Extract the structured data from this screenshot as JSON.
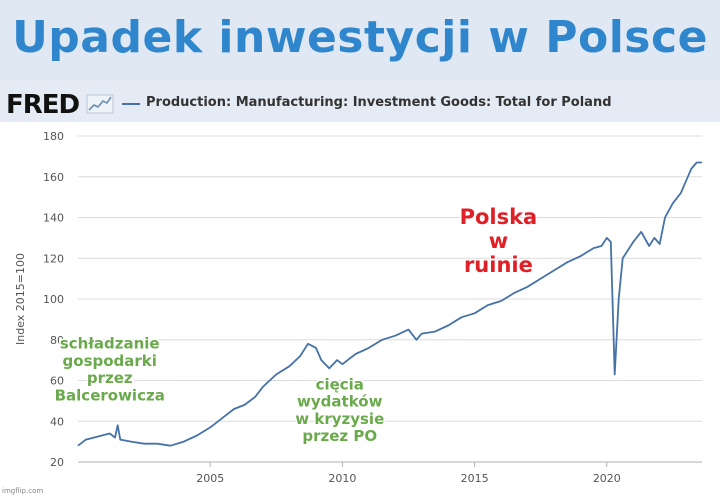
{
  "meme": {
    "title": "Upadek inwestycji w Polsce",
    "watermark": "imgflip.com"
  },
  "fred": {
    "logo": "FRED",
    "series_title": "Production: Manufacturing: Investment Goods: Total for Poland",
    "line_color": "#4572a7"
  },
  "annotations": [
    {
      "lines": [
        "schładzanie",
        "gospodarki",
        "przez",
        "Balcerowicza"
      ],
      "color": "#6aaa4c",
      "x": 2001.2,
      "y": 63,
      "size": 15
    },
    {
      "lines": [
        "cięcia",
        "wydatków",
        "w kryzysie",
        "przez PO"
      ],
      "color": "#6aaa4c",
      "x": 2009.9,
      "y": 43,
      "size": 15
    },
    {
      "lines": [
        "Polska",
        "w",
        "ruinie"
      ],
      "color": "#e02027",
      "x": 2015.9,
      "y": 125,
      "size": 21
    }
  ],
  "chart_data": {
    "type": "line",
    "ylabel": "Index 2015=100",
    "xlabel": "",
    "xlim": [
      2000.0,
      2023.6
    ],
    "ylim": [
      20,
      180
    ],
    "yticks": [
      20,
      40,
      60,
      80,
      100,
      120,
      140,
      160,
      180
    ],
    "xticks": [
      2005,
      2010,
      2015,
      2020
    ],
    "grid": "horizontal",
    "series": [
      {
        "points": [
          [
            2000.0,
            28
          ],
          [
            2000.3,
            31
          ],
          [
            2000.6,
            32
          ],
          [
            2000.9,
            33
          ],
          [
            2001.2,
            34
          ],
          [
            2001.4,
            32
          ],
          [
            2001.5,
            38
          ],
          [
            2001.6,
            31
          ],
          [
            2002.0,
            30
          ],
          [
            2002.5,
            29
          ],
          [
            2003.0,
            29
          ],
          [
            2003.5,
            28
          ],
          [
            2004.0,
            30
          ],
          [
            2004.5,
            33
          ],
          [
            2005.0,
            37
          ],
          [
            2005.5,
            42
          ],
          [
            2005.9,
            46
          ],
          [
            2006.3,
            48
          ],
          [
            2006.7,
            52
          ],
          [
            2007.0,
            57
          ],
          [
            2007.5,
            63
          ],
          [
            2008.0,
            67
          ],
          [
            2008.4,
            72
          ],
          [
            2008.7,
            78
          ],
          [
            2009.0,
            76
          ],
          [
            2009.2,
            70
          ],
          [
            2009.5,
            66
          ],
          [
            2009.8,
            70
          ],
          [
            2010.0,
            68
          ],
          [
            2010.5,
            73
          ],
          [
            2011.0,
            76
          ],
          [
            2011.5,
            80
          ],
          [
            2012.0,
            82
          ],
          [
            2012.5,
            85
          ],
          [
            2012.8,
            80
          ],
          [
            2013.0,
            83
          ],
          [
            2013.5,
            84
          ],
          [
            2014.0,
            87
          ],
          [
            2014.5,
            91
          ],
          [
            2015.0,
            93
          ],
          [
            2015.5,
            97
          ],
          [
            2016.0,
            99
          ],
          [
            2016.5,
            103
          ],
          [
            2017.0,
            106
          ],
          [
            2017.5,
            110
          ],
          [
            2018.0,
            114
          ],
          [
            2018.5,
            118
          ],
          [
            2019.0,
            121
          ],
          [
            2019.5,
            125
          ],
          [
            2019.8,
            126
          ],
          [
            2020.0,
            130
          ],
          [
            2020.15,
            128
          ],
          [
            2020.3,
            63
          ],
          [
            2020.45,
            100
          ],
          [
            2020.6,
            120
          ],
          [
            2021.0,
            128
          ],
          [
            2021.3,
            133
          ],
          [
            2021.6,
            126
          ],
          [
            2021.8,
            130
          ],
          [
            2022.0,
            127
          ],
          [
            2022.2,
            140
          ],
          [
            2022.5,
            147
          ],
          [
            2022.8,
            152
          ],
          [
            2023.0,
            158
          ],
          [
            2023.2,
            164
          ],
          [
            2023.4,
            167
          ],
          [
            2023.6,
            167
          ]
        ]
      }
    ]
  }
}
